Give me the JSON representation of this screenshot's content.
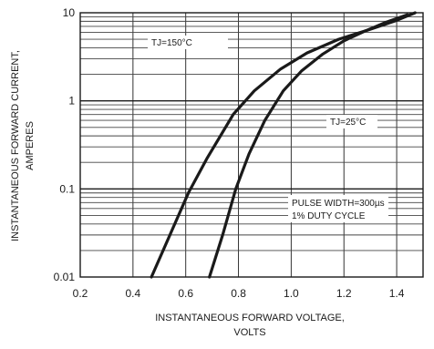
{
  "chart_data": {
    "type": "line",
    "x_scale": "linear",
    "y_scale": "log",
    "xlim": [
      0.2,
      1.5
    ],
    "ylim": [
      0.01,
      10
    ],
    "x_ticks": [
      "0.2",
      "0.4",
      "0.6",
      "0.8",
      "1.0",
      "1.2",
      "1.4"
    ],
    "y_ticks": [
      "0.01",
      "0.1",
      "1",
      "10"
    ],
    "xlabel_line1": "INSTANTANEOUS FORWARD VOLTAGE,",
    "xlabel_line2": "VOLTS",
    "ylabel_line1": "INSTANTANEOUS FORWARD CURRENT,",
    "ylabel_line2": "AMPERES",
    "grid": true,
    "series": [
      {
        "name": "TJ=150°C",
        "x": [
          0.47,
          0.55,
          0.61,
          0.68,
          0.78,
          0.86,
          0.96,
          1.06,
          1.18,
          1.3,
          1.4,
          1.47
        ],
        "y": [
          0.01,
          0.035,
          0.09,
          0.22,
          0.7,
          1.3,
          2.3,
          3.5,
          5.0,
          6.5,
          8.2,
          10.0
        ]
      },
      {
        "name": "TJ=25°C",
        "x": [
          0.69,
          0.74,
          0.79,
          0.84,
          0.9,
          0.97,
          1.04,
          1.12,
          1.2,
          1.28,
          1.36,
          1.44
        ],
        "y": [
          0.01,
          0.03,
          0.1,
          0.25,
          0.6,
          1.3,
          2.2,
          3.4,
          4.8,
          6.2,
          7.8,
          9.5
        ]
      }
    ],
    "annotations": {
      "tj150": "TJ=150°C",
      "tj25": "TJ=25°C",
      "pulse_line1": "PULSE WIDTH=300µs",
      "pulse_line2": "1% DUTY CYCLE"
    }
  }
}
